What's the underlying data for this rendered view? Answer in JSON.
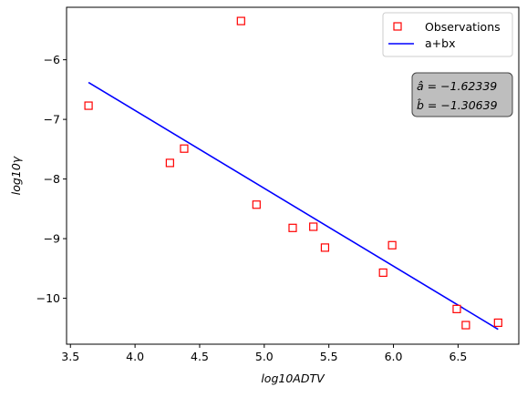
{
  "chart_data": {
    "type": "scatter",
    "xlabel": "log10ADTV",
    "ylabel": "log10γ",
    "xlim": [
      3.47,
      6.97
    ],
    "ylim": [
      -10.77,
      -5.12
    ],
    "xticks": [
      3.5,
      4.0,
      4.5,
      5.0,
      5.5,
      6.0,
      6.5
    ],
    "xtick_labels": [
      "3.5",
      "4.0",
      "4.5",
      "5.0",
      "5.5",
      "6.0",
      "6.5"
    ],
    "yticks": [
      -6,
      -7,
      -8,
      -9,
      -10
    ],
    "ytick_labels": [
      "−6",
      "−7",
      "−8",
      "−9",
      "−10"
    ],
    "grid": false,
    "legend_position": "top-right",
    "series": [
      {
        "name": "Observations",
        "kind": "scatter",
        "marker": "square",
        "color": "#ff0000",
        "x": [
          3.64,
          4.27,
          4.38,
          4.82,
          4.94,
          5.22,
          5.38,
          5.47,
          5.92,
          5.99,
          6.49,
          6.56,
          6.81
        ],
        "y": [
          -6.77,
          -7.73,
          -7.49,
          -5.35,
          -8.43,
          -8.82,
          -8.8,
          -9.15,
          -9.57,
          -9.11,
          -10.18,
          -10.45,
          -10.41
        ]
      },
      {
        "name": "a+bx",
        "kind": "line",
        "color": "#0000ff",
        "x": [
          3.64,
          6.81
        ],
        "y": [
          -6.38,
          -10.52
        ]
      }
    ],
    "annotation": {
      "a_label": "â = −1.62339",
      "b_label": "b̂ = −1.30639",
      "box_color": "#bebebe"
    }
  }
}
